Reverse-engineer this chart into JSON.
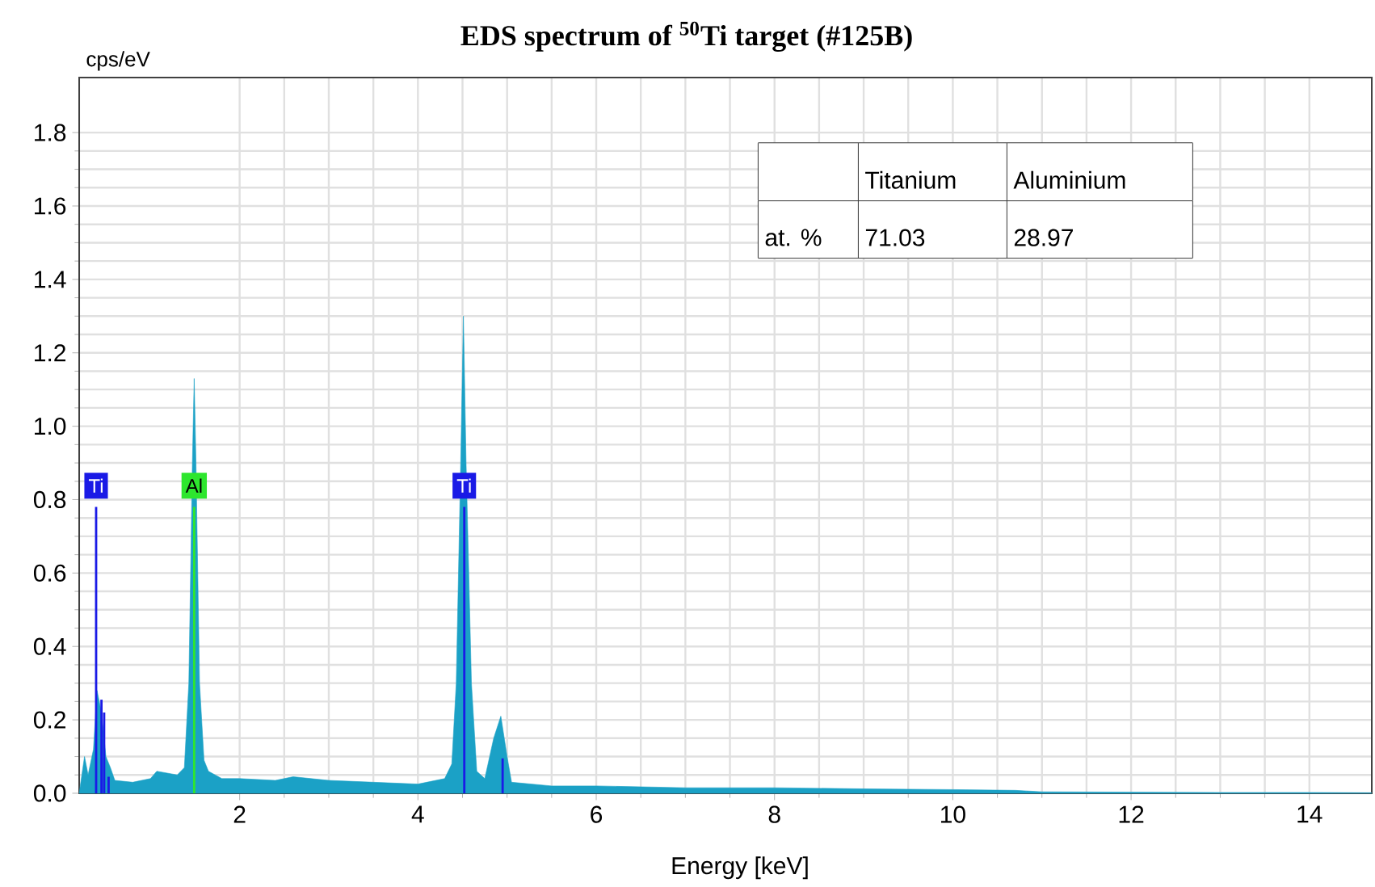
{
  "chart_data": {
    "type": "area",
    "title": "**EDS spectrum of $^{50}$Ti target (#125B)**",
    "xlabel": "Energy [keV]",
    "ylabel": "cps/eV",
    "xlim": [
      0.2,
      14.7
    ],
    "ylim": [
      0,
      1.95
    ],
    "xticks": [
      2,
      4,
      6,
      8,
      10,
      12,
      14
    ],
    "yticks": [
      {
        "value": 0,
        "label": "0.0"
      },
      0.2,
      0.4,
      0.6,
      0.8,
      {
        "value": 1,
        "label": "1.0"
      },
      1.2,
      1.4,
      1.6,
      1.8
    ],
    "grid": true,
    "annotations": [
      "at. %",
      "Titanium",
      "Aluminium",
      "71.03",
      "28.97"
    ],
    "series": [
      {
        "color": "#1ba1c6",
        "x": [
          0.2,
          0.26,
          0.3,
          0.36,
          0.4,
          0.45,
          0.5,
          0.55,
          0.6,
          0.8,
          1.0,
          1.07,
          1.3,
          1.38,
          1.43,
          1.47,
          1.49,
          1.51,
          1.55,
          1.6,
          1.65,
          1.8,
          2.0,
          2.4,
          2.6,
          3.0,
          3.5,
          4.0,
          4.3,
          4.38,
          4.43,
          4.48,
          4.51,
          4.54,
          4.6,
          4.66,
          4.75,
          4.85,
          4.93,
          5.0,
          5.05,
          5.5,
          6.0,
          7.0,
          8.0,
          9.0,
          10.0,
          10.7,
          11.0,
          12.0,
          13.0,
          14.0,
          14.7
        ],
        "values": [
          0.0,
          0.1,
          0.05,
          0.12,
          0.28,
          0.22,
          0.1,
          0.07,
          0.035,
          0.03,
          0.04,
          0.06,
          0.05,
          0.07,
          0.3,
          0.9,
          1.13,
          0.9,
          0.3,
          0.09,
          0.06,
          0.04,
          0.04,
          0.035,
          0.045,
          0.035,
          0.03,
          0.025,
          0.04,
          0.08,
          0.3,
          0.9,
          1.3,
          0.9,
          0.3,
          0.06,
          0.04,
          0.15,
          0.21,
          0.1,
          0.03,
          0.02,
          0.02,
          0.015,
          0.015,
          0.012,
          0.01,
          0.008,
          0.004,
          0.003,
          0.002,
          0.002,
          0.001
        ]
      },
      {
        "type": "bar",
        "name": "Ti",
        "color": "#1a1ae6",
        "x": [
          0.39,
          0.45,
          0.48,
          0.53
        ],
        "values": [
          0.78,
          0.255,
          0.22,
          0.045
        ]
      },
      {
        "type": "bar",
        "name": "Al",
        "color": "#2ee62e",
        "x": [
          1.49
        ],
        "values": [
          0.78
        ]
      },
      {
        "type": "bar",
        "name": "Ti",
        "color": "#1a1ae6",
        "x": [
          4.52,
          4.95
        ],
        "values": [
          0.78,
          0.095
        ]
      }
    ]
  }
}
